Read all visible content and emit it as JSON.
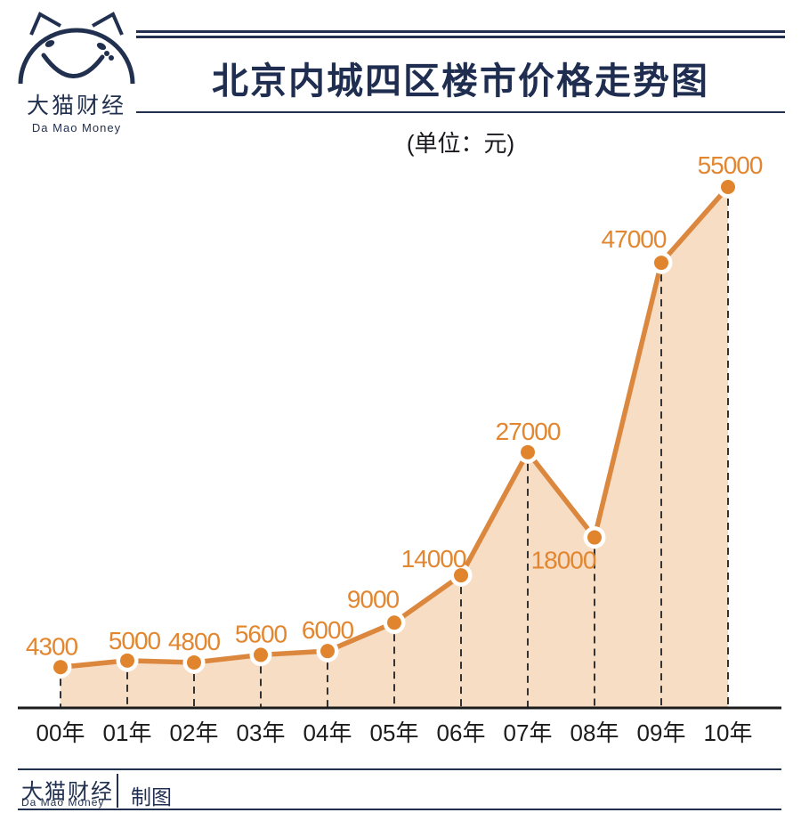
{
  "logo": {
    "name": "大猫财经",
    "name_en": "Da Mao Money"
  },
  "header": {
    "title": "北京内城四区楼市价格走势图",
    "subtitle": "(单位：元)"
  },
  "chart_data": {
    "type": "area",
    "title": "北京内城四区楼市价格走势图",
    "unit_label": "(单位：元)",
    "categories": [
      "00年",
      "01年",
      "02年",
      "03年",
      "04年",
      "05年",
      "06年",
      "07年",
      "08年",
      "09年",
      "10年"
    ],
    "values": [
      4300,
      5000,
      4800,
      5600,
      6000,
      9000,
      14000,
      27000,
      18000,
      47000,
      55000
    ],
    "ylim": [
      0,
      58000
    ],
    "legend": "none",
    "grid": "vertical dashed droplines from each point to x-axis",
    "colors": {
      "line": "#DB873E",
      "fill": "#F8DDC5",
      "point": "#E0852E",
      "point_halo": "#FFFFFF",
      "value_label": "#E2862F",
      "axis": "#1C1C1C",
      "dropline": "#333333",
      "tick_label": "#1C1C1C"
    }
  },
  "footer": {
    "brand": "大猫财经",
    "brand_en": "Da Mao Money",
    "credit": "制图"
  },
  "theme": {
    "navy": "#22304F",
    "background": "#FFFFFF"
  }
}
